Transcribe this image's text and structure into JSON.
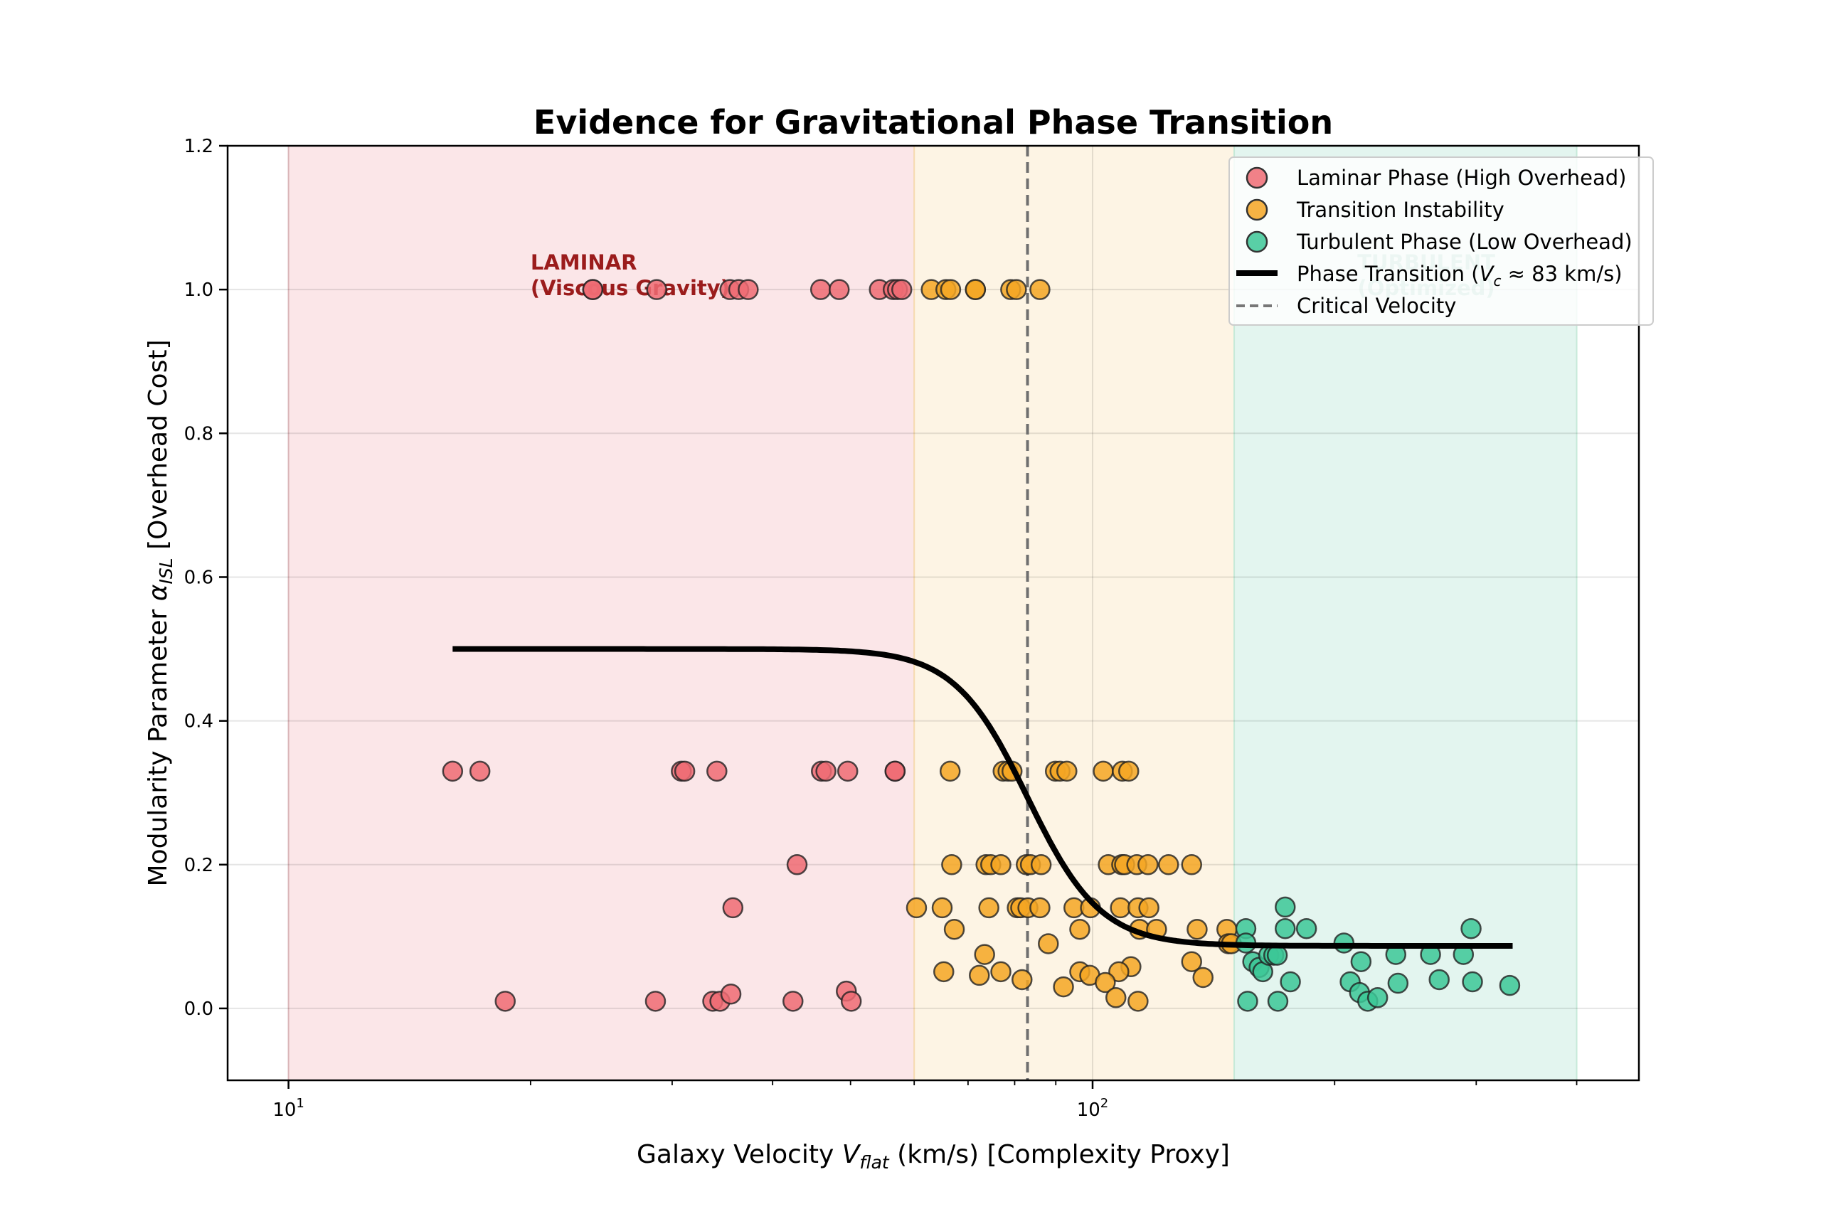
{
  "chart_data": {
    "type": "scatter",
    "title": "Evidence for Gravitational Phase Transition",
    "xlabel": "Galaxy Velocity V_flat (km/s) [Complexity Proxy]",
    "xlabel_parts": {
      "pre": "Galaxy Velocity ",
      "var": "V",
      "sub": "flat",
      "post": " (km/s) [Complexity Proxy]"
    },
    "ylabel": "Modularity Parameter α_ISL [Overhead Cost]",
    "ylabel_parts": {
      "pre": "Modularity Parameter ",
      "var": "α",
      "sub": "ISL",
      "post": " [Overhead Cost]"
    },
    "xscale": "log",
    "xlim": [
      8.4,
      478
    ],
    "ylim": [
      -0.1,
      1.2
    ],
    "grid": true,
    "legend_placement": "top-right",
    "x_ticks": [
      {
        "value": 10,
        "base": "10",
        "exp": "1"
      },
      {
        "value": 100,
        "base": "10",
        "exp": "2"
      }
    ],
    "x_minor_ticks": [
      20,
      30,
      40,
      50,
      60,
      70,
      80,
      90,
      200,
      300,
      400
    ],
    "y_ticks": [
      {
        "value": 0.0,
        "label": "0.0"
      },
      {
        "value": 0.2,
        "label": "0.2"
      },
      {
        "value": 0.4,
        "label": "0.4"
      },
      {
        "value": 0.6,
        "label": "0.6"
      },
      {
        "value": 0.8,
        "label": "0.8"
      },
      {
        "value": 1.0,
        "label": "1.0"
      },
      {
        "value": 1.2,
        "label": "1.2"
      }
    ],
    "regions": [
      {
        "name": "laminar",
        "x_range": [
          10,
          60
        ],
        "color": "#fbe6e8"
      },
      {
        "name": "transition",
        "x_range": [
          60,
          150
        ],
        "color": "#fdf4e4"
      },
      {
        "name": "turbulent",
        "x_range": [
          150,
          400
        ],
        "color": "#e3f5ef"
      }
    ],
    "annotations": [
      {
        "name": "laminar",
        "lines": [
          "LAMINAR",
          "(Viscous Gravity)"
        ],
        "x": 20,
        "y": 1.0,
        "color": "#9b1c1c"
      },
      {
        "name": "turbulent",
        "lines": [
          "TURBULENT",
          "(Optimized)"
        ],
        "x": 260,
        "y": 1.0,
        "color": "#0e7a5a"
      }
    ],
    "critical_velocity": 83,
    "phase_transition": {
      "high": 0.5,
      "low": 0.087,
      "center": 83,
      "steepness": 22,
      "x_range": [
        16,
        333
      ]
    },
    "series": [
      {
        "name": "Laminar Phase (High Overhead)",
        "color": "#ef6b73",
        "points": [
          [
            23.9,
            1.0
          ],
          [
            23.9,
            1.0
          ],
          [
            28.7,
            1.0
          ],
          [
            35.4,
            1.0
          ],
          [
            36.3,
            1.0
          ],
          [
            37.3,
            1.0
          ],
          [
            45.9,
            1.0
          ],
          [
            48.4,
            1.0
          ],
          [
            54.3,
            1.0
          ],
          [
            56.5,
            1.0
          ],
          [
            57.2,
            1.0
          ],
          [
            57.9,
            1.0
          ],
          [
            16.0,
            0.33
          ],
          [
            17.3,
            0.33
          ],
          [
            30.8,
            0.33
          ],
          [
            31.1,
            0.33
          ],
          [
            34.1,
            0.33
          ],
          [
            46.0,
            0.33
          ],
          [
            46.6,
            0.33
          ],
          [
            49.6,
            0.33
          ],
          [
            56.8,
            0.33
          ],
          [
            56.8,
            0.33
          ],
          [
            42.9,
            0.2
          ],
          [
            35.7,
            0.14
          ],
          [
            18.6,
            0.01
          ],
          [
            28.6,
            0.01
          ],
          [
            33.7,
            0.01
          ],
          [
            34.4,
            0.01
          ],
          [
            35.5,
            0.02
          ],
          [
            42.4,
            0.01
          ],
          [
            49.4,
            0.024
          ],
          [
            50.1,
            0.01
          ]
        ]
      },
      {
        "name": "Transition Instability",
        "color": "#f5a623",
        "points": [
          [
            63.0,
            1.0
          ],
          [
            65.7,
            1.0
          ],
          [
            66.6,
            1.0
          ],
          [
            71.5,
            1.0
          ],
          [
            71.5,
            1.0
          ],
          [
            79.1,
            1.0
          ],
          [
            80.4,
            1.0
          ],
          [
            86.0,
            1.0
          ],
          [
            66.5,
            0.33
          ],
          [
            77.4,
            0.33
          ],
          [
            78.5,
            0.33
          ],
          [
            79.4,
            0.33
          ],
          [
            89.9,
            0.33
          ],
          [
            91.1,
            0.33
          ],
          [
            92.9,
            0.33
          ],
          [
            103.1,
            0.33
          ],
          [
            108.9,
            0.33
          ],
          [
            110.9,
            0.33
          ],
          [
            66.8,
            0.2
          ],
          [
            73.7,
            0.2
          ],
          [
            74.7,
            0.2
          ],
          [
            76.9,
            0.2
          ],
          [
            82.7,
            0.2
          ],
          [
            83.7,
            0.2
          ],
          [
            86.3,
            0.2
          ],
          [
            104.6,
            0.2
          ],
          [
            108.7,
            0.2
          ],
          [
            109.6,
            0.2
          ],
          [
            113.5,
            0.2
          ],
          [
            117.2,
            0.2
          ],
          [
            124.3,
            0.2
          ],
          [
            132.8,
            0.2
          ],
          [
            60.4,
            0.14
          ],
          [
            65.0,
            0.14
          ],
          [
            74.3,
            0.14
          ],
          [
            80.6,
            0.14
          ],
          [
            81.4,
            0.14
          ],
          [
            83.1,
            0.14
          ],
          [
            86.0,
            0.14
          ],
          [
            94.8,
            0.14
          ],
          [
            99.4,
            0.14
          ],
          [
            108.3,
            0.14
          ],
          [
            113.9,
            0.14
          ],
          [
            117.5,
            0.14
          ],
          [
            67.3,
            0.11
          ],
          [
            96.4,
            0.11
          ],
          [
            114.4,
            0.11
          ],
          [
            120.1,
            0.11
          ],
          [
            134.9,
            0.11
          ],
          [
            146.9,
            0.11
          ],
          [
            88.1,
            0.09
          ],
          [
            147.5,
            0.09
          ],
          [
            148.8,
            0.09
          ],
          [
            73.4,
            0.075
          ],
          [
            132.8,
            0.065
          ],
          [
            111.6,
            0.058
          ],
          [
            65.3,
            0.051
          ],
          [
            76.9,
            0.051
          ],
          [
            96.4,
            0.051
          ],
          [
            107.8,
            0.051
          ],
          [
            72.3,
            0.046
          ],
          [
            99.2,
            0.046
          ],
          [
            81.7,
            0.04
          ],
          [
            137.2,
            0.043
          ],
          [
            92.0,
            0.03
          ],
          [
            103.7,
            0.036
          ],
          [
            106.9,
            0.015
          ],
          [
            113.9,
            0.01
          ]
        ]
      },
      {
        "name": "Turbulent Phase (Low Overhead)",
        "color": "#3cc796",
        "points": [
          [
            173.6,
            0.141
          ],
          [
            155.1,
            0.111
          ],
          [
            173.6,
            0.111
          ],
          [
            184.5,
            0.111
          ],
          [
            295.6,
            0.111
          ],
          [
            155.1,
            0.091
          ],
          [
            205.4,
            0.091
          ],
          [
            158.2,
            0.065
          ],
          [
            161.1,
            0.057
          ],
          [
            162.8,
            0.051
          ],
          [
            165.6,
            0.074
          ],
          [
            168.0,
            0.074
          ],
          [
            169.7,
            0.074
          ],
          [
            215.7,
            0.065
          ],
          [
            238.3,
            0.075
          ],
          [
            263.2,
            0.075
          ],
          [
            289.2,
            0.075
          ],
          [
            176.2,
            0.037
          ],
          [
            209.1,
            0.037
          ],
          [
            214.8,
            0.022
          ],
          [
            219.9,
            0.01
          ],
          [
            226.2,
            0.015
          ],
          [
            239.8,
            0.035
          ],
          [
            269.8,
            0.04
          ],
          [
            296.8,
            0.037
          ],
          [
            330.2,
            0.032
          ],
          [
            155.9,
            0.01
          ],
          [
            170.0,
            0.01
          ]
        ]
      }
    ],
    "legend": [
      {
        "kind": "marker",
        "color": "#ef6b73",
        "label": "Laminar Phase (High Overhead)"
      },
      {
        "kind": "marker",
        "color": "#f5a623",
        "label": "Transition Instability"
      },
      {
        "kind": "marker",
        "color": "#3cc796",
        "label": "Turbulent Phase (Low Overhead)"
      },
      {
        "kind": "line",
        "color": "#000000",
        "label": "Phase Transition (V_c ≈ 83 km/s)",
        "label_parts": {
          "pre": "Phase Transition (",
          "var": "V",
          "sub": "c",
          "post": " ≈ 83 km/s)"
        }
      },
      {
        "kind": "dashed",
        "color": "#777777",
        "label": "Critical Velocity"
      }
    ]
  }
}
